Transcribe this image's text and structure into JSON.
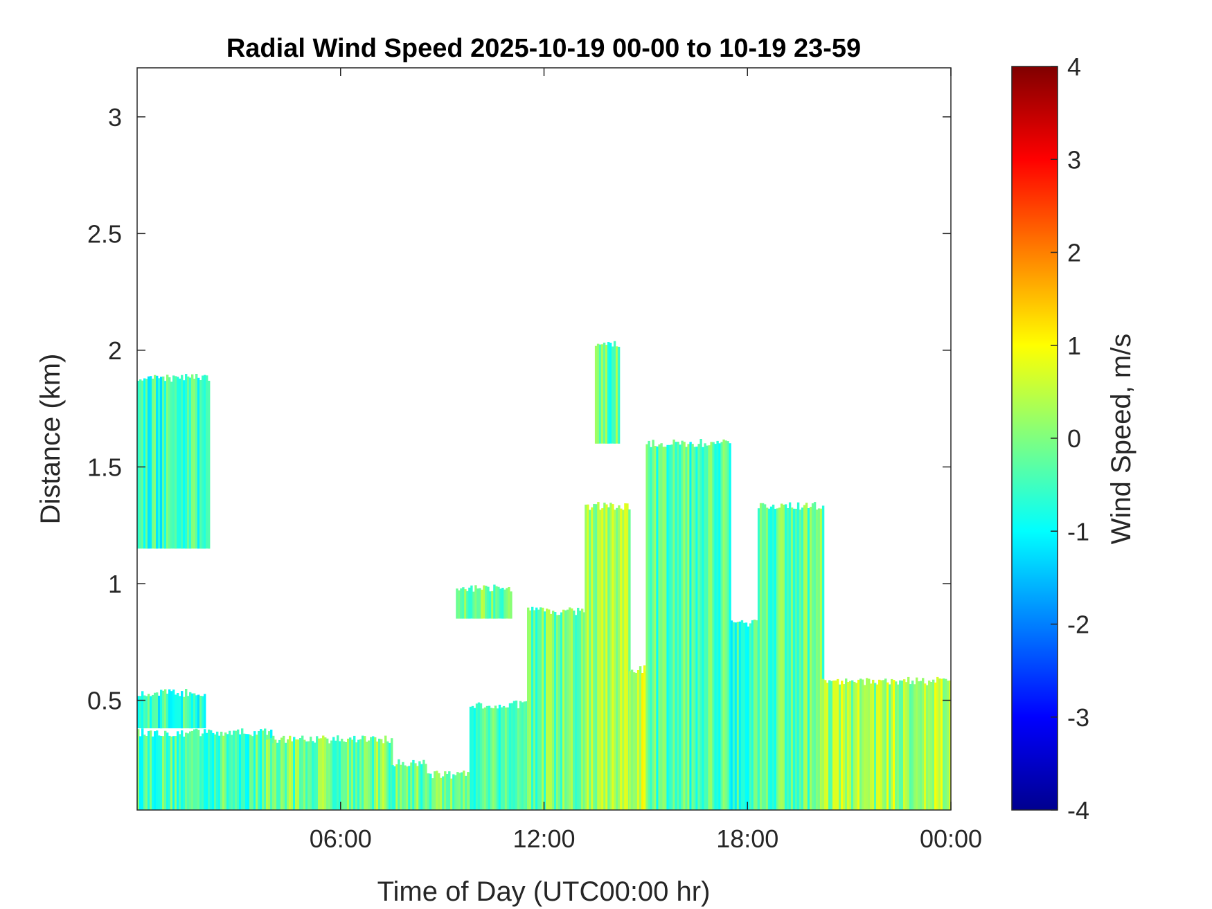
{
  "chart_data": {
    "type": "heatmap",
    "title": "Radial Wind Speed 2025-10-19 00-00 to 10-19 23-59",
    "xlabel": "Time of Day (UTC00:00 hr)",
    "ylabel": "Distance (km)",
    "xlim": [
      0,
      24
    ],
    "ylim": [
      0.03,
      3.21
    ],
    "x_ticks": [
      6,
      12,
      18,
      24
    ],
    "x_tick_labels": [
      "06:00",
      "12:00",
      "18:00",
      "00:00"
    ],
    "y_ticks": [
      0.5,
      1,
      1.5,
      2,
      2.5,
      3
    ],
    "y_tick_labels": [
      "0.5",
      "1",
      "1.5",
      "2",
      "2.5",
      "3"
    ],
    "colorbar": {
      "label": "Wind Speed, m/s",
      "clim": [
        -4,
        4
      ],
      "ticks": [
        -4,
        -3,
        -2,
        -1,
        0,
        1,
        2,
        3,
        4
      ],
      "tick_labels": [
        "-4",
        "-3",
        "-2",
        "-1",
        "0",
        "1",
        "2",
        "3",
        "4"
      ],
      "colormap": "jet"
    },
    "colors": {
      "axis": "#262626",
      "background": "#ffffff"
    },
    "regions": [
      {
        "x": [
          0.0,
          4.0
        ],
        "y": [
          0.03,
          0.38
        ],
        "speed": -0.4
      },
      {
        "x": [
          0.0,
          2.0
        ],
        "y": [
          0.38,
          0.55
        ],
        "speed": -0.6
      },
      {
        "x": [
          3.8,
          7.5
        ],
        "y": [
          0.03,
          0.35
        ],
        "speed": -0.1
      },
      {
        "x": [
          7.5,
          8.5
        ],
        "y": [
          0.03,
          0.25
        ],
        "speed": -0.2
      },
      {
        "x": [
          8.5,
          10.0
        ],
        "y": [
          0.03,
          0.2
        ],
        "speed": -0.1
      },
      {
        "x": [
          9.8,
          11.5
        ],
        "y": [
          0.03,
          0.5
        ],
        "speed": -0.3
      },
      {
        "x": [
          11.5,
          13.2
        ],
        "y": [
          0.03,
          0.9
        ],
        "speed": -0.2
      },
      {
        "x": [
          13.2,
          14.5
        ],
        "y": [
          0.03,
          1.35
        ],
        "speed": 0.2
      },
      {
        "x": [
          14.5,
          15.0
        ],
        "y": [
          0.03,
          0.65
        ],
        "speed": 0.5
      },
      {
        "x": [
          15.0,
          17.5
        ],
        "y": [
          0.03,
          1.62
        ],
        "speed": -0.4
      },
      {
        "x": [
          17.5,
          18.3
        ],
        "y": [
          0.03,
          0.85
        ],
        "speed": -0.5
      },
      {
        "x": [
          18.3,
          20.2
        ],
        "y": [
          0.03,
          1.35
        ],
        "speed": -0.2
      },
      {
        "x": [
          20.2,
          24.0
        ],
        "y": [
          0.03,
          0.6
        ],
        "speed": 0.3
      },
      {
        "x": [
          0.0,
          2.1
        ],
        "y": [
          1.15,
          1.9
        ],
        "speed": -0.6
      },
      {
        "x": [
          9.4,
          11.0
        ],
        "y": [
          0.85,
          1.0
        ],
        "speed": 0.0
      },
      {
        "x": [
          13.5,
          14.2
        ],
        "y": [
          1.6,
          2.05
        ],
        "speed": -0.3
      }
    ]
  }
}
